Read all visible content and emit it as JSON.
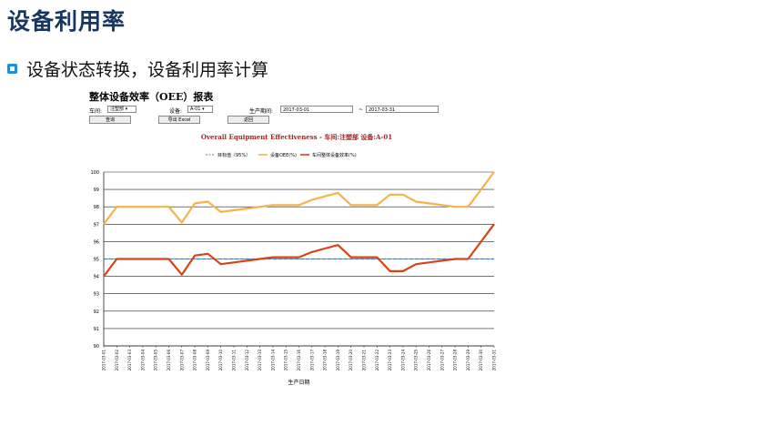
{
  "slide": {
    "title": "设备利用率",
    "subtitle": "设备状态转换，设备利用率计算"
  },
  "app": {
    "title": "整体设备效率（OEE）报表",
    "workshop_label": "车间:",
    "workshop_value": "注塑部 ▾",
    "equipment_label": "设备:",
    "equipment_value": "A-01 ▾",
    "period_label": "生产期间:",
    "date_from": "2017-03-01",
    "date_sep": "~",
    "date_to": "2017-03-31",
    "query_button": "查询",
    "export_button": "导出 Excel",
    "back_button": "返回"
  },
  "chart_data": {
    "type": "line",
    "title": "Overall Equipment Effectiveness - 车间:注塑部  设备:A-01",
    "xlabel": "生产日期",
    "ylabel": "",
    "ylim": [
      90,
      100
    ],
    "yticks": [
      90,
      91,
      92,
      93,
      94,
      95,
      96,
      97,
      98,
      99,
      100
    ],
    "legend_position": "top-center",
    "categories": [
      "2017-03-01",
      "2017-03-02",
      "2017-03-03",
      "2017-03-04",
      "2017-03-05",
      "2017-03-06",
      "2017-03-07",
      "2017-03-08",
      "2017-03-09",
      "2017-03-10",
      "2017-03-11",
      "2017-03-12",
      "2017-03-13",
      "2017-03-14",
      "2017-03-15",
      "2017-03-16",
      "2017-03-17",
      "2017-03-18",
      "2017-03-19",
      "2017-03-20",
      "2017-03-21",
      "2017-03-22",
      "2017-03-23",
      "2017-03-24",
      "2017-03-25",
      "2017-03-26",
      "2017-03-27",
      "2017-03-28",
      "2017-03-29",
      "2017-03-30",
      "2017-03-31"
    ],
    "series": [
      {
        "name": "目标值（95%）",
        "color": "#4a7ebb",
        "dashed": true,
        "values": [
          95,
          95,
          95,
          95,
          95,
          95,
          95,
          95,
          95,
          95,
          95,
          95,
          95,
          95,
          95,
          95,
          95,
          95,
          95,
          95,
          95,
          95,
          95,
          95,
          95,
          95,
          95,
          95,
          95,
          95,
          95
        ]
      },
      {
        "name": "设备OEE(%)",
        "color": "#f5b34a",
        "dashed": false,
        "values": [
          97.0,
          98.0,
          98.0,
          98.0,
          98.0,
          98.0,
          97.1,
          98.2,
          98.3,
          97.7,
          97.8,
          97.9,
          98.0,
          98.1,
          98.1,
          98.1,
          98.4,
          98.6,
          98.8,
          98.1,
          98.1,
          98.1,
          98.7,
          98.7,
          98.3,
          98.2,
          98.1,
          98.0,
          98.0,
          99.0,
          100.0
        ]
      },
      {
        "name": "车间整体设备效率(%)",
        "color": "#d84315",
        "dashed": false,
        "values": [
          94.0,
          95.0,
          95.0,
          95.0,
          95.0,
          95.0,
          94.1,
          95.2,
          95.3,
          94.7,
          94.8,
          94.9,
          95.0,
          95.1,
          95.1,
          95.1,
          95.4,
          95.6,
          95.8,
          95.1,
          95.1,
          95.1,
          94.3,
          94.3,
          94.7,
          94.8,
          94.9,
          95.0,
          95.0,
          96.0,
          97.0
        ]
      }
    ]
  }
}
